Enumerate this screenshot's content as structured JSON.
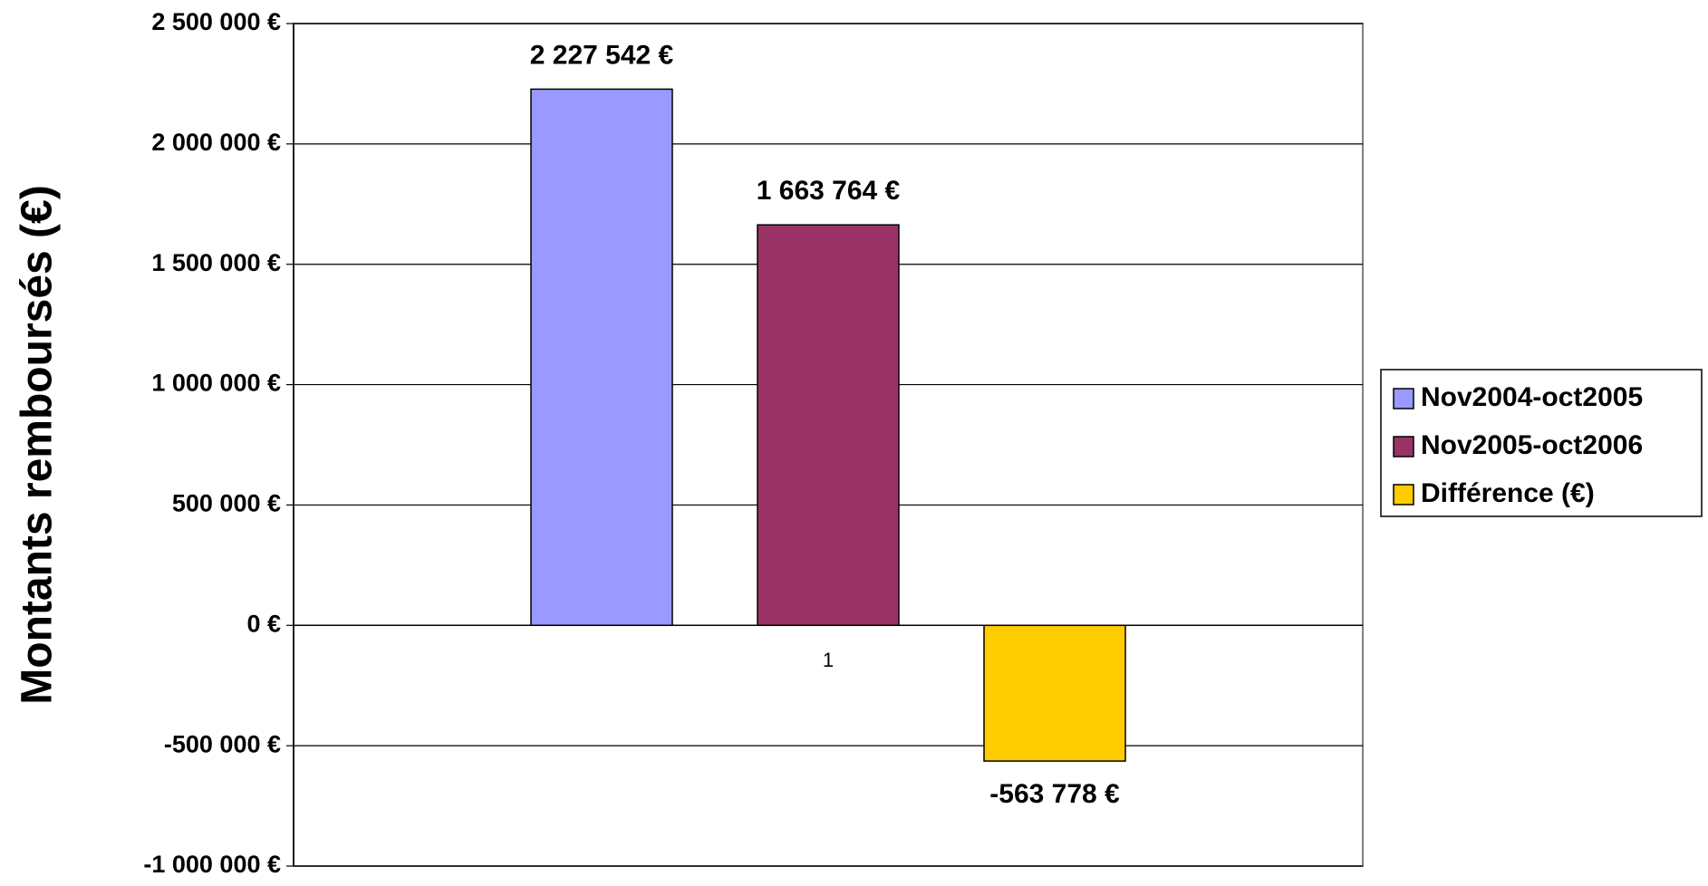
{
  "chart_data": {
    "type": "bar",
    "y_label": "Montants remboursés (€)",
    "categories": [
      "1"
    ],
    "series": [
      {
        "name": "Nov2004-oct2005",
        "color": "#9999ff",
        "values": [
          2227542
        ],
        "value_labels": [
          "2 227 542 €"
        ]
      },
      {
        "name": "Nov2005-oct2006",
        "color": "#993366",
        "values": [
          1663764
        ],
        "value_labels": [
          "1 663 764 €"
        ]
      },
      {
        "name": "Différence (€)",
        "color": "#ffcc00",
        "values": [
          -563778
        ],
        "value_labels": [
          "-563 778 €"
        ]
      }
    ],
    "ylim": [
      -1000000,
      2500000
    ],
    "yticks": [
      {
        "value": -1000000,
        "label": "-1 000 000 €"
      },
      {
        "value": -500000,
        "label": "-500 000 €"
      },
      {
        "value": 0,
        "label": "0 €"
      },
      {
        "value": 500000,
        "label": "500 000 €"
      },
      {
        "value": 1000000,
        "label": "1 000 000 €"
      },
      {
        "value": 1500000,
        "label": "1 500 000 €"
      },
      {
        "value": 2000000,
        "label": "2 000 000 €"
      },
      {
        "value": 2500000,
        "label": "2 500 000 €"
      }
    ],
    "grid": true,
    "legend": "right"
  }
}
